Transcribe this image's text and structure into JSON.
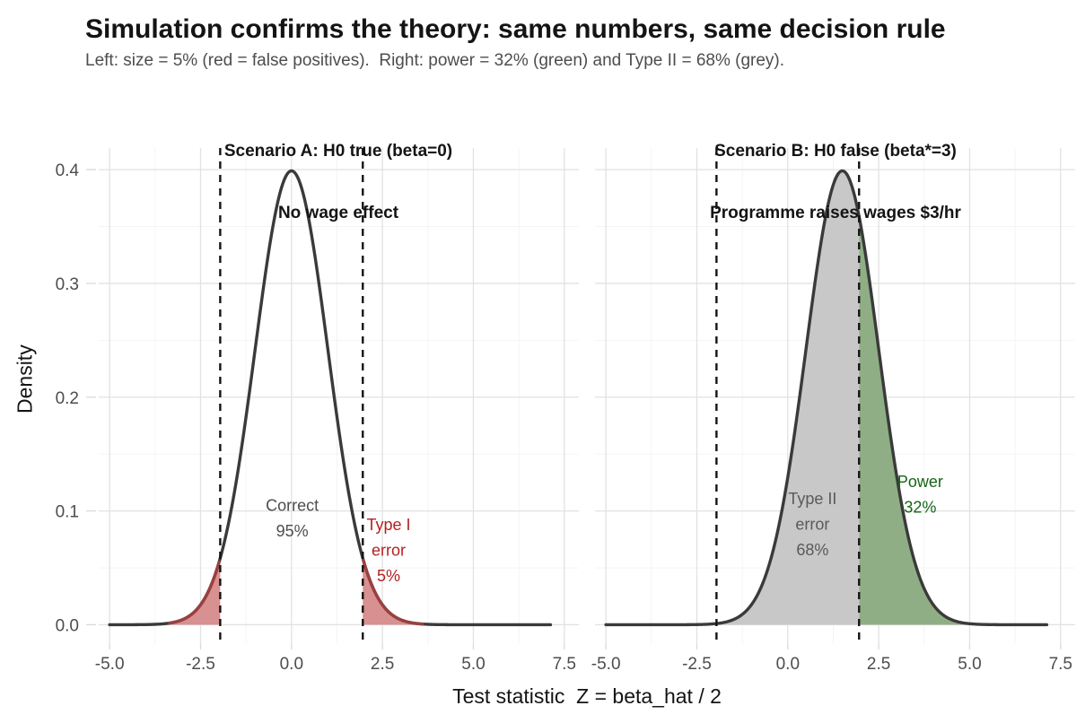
{
  "header": {
    "title": "Simulation confirms the theory: same numbers, same decision rule",
    "subtitle": "Left: size = 5% (red = false positives).  Right: power = 32% (green) and Type II = 68% (grey)."
  },
  "chart_data": {
    "type": "area",
    "description": "Two-panel density plot of the test statistic under H0 and H1 with critical values at ±1.96",
    "x": {
      "label": "Test statistic  Z = beta_hat / 2",
      "ticks": [
        -5.0,
        -2.5,
        0.0,
        2.5,
        5.0,
        7.5
      ],
      "minor_ticks": [
        -3.75,
        -1.25,
        1.25,
        3.75,
        6.25
      ],
      "range": [
        -5.3,
        7.9
      ]
    },
    "y": {
      "label": "Density",
      "ticks": [
        0.0,
        0.1,
        0.2,
        0.3,
        0.4
      ],
      "minor_ticks": [
        0.05,
        0.15,
        0.25,
        0.35
      ],
      "range": [
        -0.017,
        0.419
      ]
    },
    "critical_values": [
      -1.96,
      1.96
    ],
    "curve_domain": [
      -5,
      7.15
    ],
    "panels": [
      {
        "strip_title": [
          "Scenario A: H0 true (beta=0)",
          "No wage effect"
        ],
        "distribution": {
          "type": "normal",
          "mean": 0,
          "sd": 1
        },
        "regions": [
          {
            "name": "type-1-error-left-tail",
            "from": -5,
            "to": -1.96,
            "fill": "#d89090",
            "edge": "#9a4040",
            "share": "2.5%"
          },
          {
            "name": "type-1-error-right-tail",
            "from": 1.96,
            "to": 7.15,
            "fill": "#d89090",
            "edge": "#9a4040",
            "share": "2.5%"
          }
        ],
        "annotations": [
          {
            "name": "correct-label",
            "lines": [
              "Correct",
              "95%"
            ],
            "x": 0.02,
            "y": 0.1,
            "color": "#4d4d4d"
          },
          {
            "name": "type-1-error-label",
            "lines": [
              "Type I",
              "error",
              "5%"
            ],
            "x": 2.67,
            "y": 0.083,
            "color": "#b22222"
          }
        ]
      },
      {
        "strip_title": [
          "Scenario B: H0 false (beta*=3)",
          "Programme raises wages $3/hr"
        ],
        "distribution": {
          "type": "normal",
          "mean": 1.5,
          "sd": 1
        },
        "regions": [
          {
            "name": "type-2-error-region",
            "from": -5,
            "to": 1.96,
            "fill": "#c8c8c8",
            "share": "68%"
          },
          {
            "name": "power-region",
            "from": 1.96,
            "to": 7.15,
            "fill": "#8fae86",
            "share": "32%"
          }
        ],
        "annotations": [
          {
            "name": "type-2-error-label",
            "lines": [
              "Type II",
              "error",
              "68%"
            ],
            "x": 0.68,
            "y": 0.106,
            "color": "#5a5a5a"
          },
          {
            "name": "power-label",
            "lines": [
              "Power",
              "32%"
            ],
            "x": 3.64,
            "y": 0.121,
            "color": "#156515"
          }
        ]
      }
    ],
    "style": {
      "curve_color": "#3a3a3a",
      "dashed_line_color": "#141414",
      "grid_major_color": "#e2e2e2",
      "grid_minor_color": "#f3f3f3",
      "tick_mark_color": "#d9d9d9",
      "tick_label_color": "#4d4d4d"
    }
  }
}
